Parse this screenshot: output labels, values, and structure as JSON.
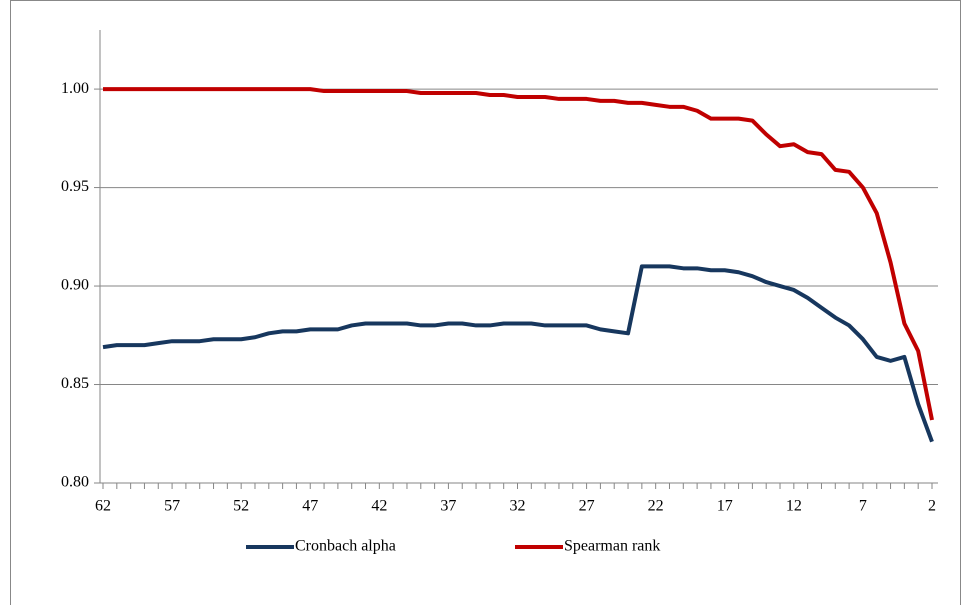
{
  "chart_data": {
    "type": "line",
    "x": [
      62,
      61,
      60,
      59,
      58,
      57,
      56,
      55,
      54,
      53,
      52,
      51,
      50,
      49,
      48,
      47,
      46,
      45,
      44,
      43,
      42,
      41,
      40,
      39,
      38,
      37,
      36,
      35,
      34,
      33,
      32,
      31,
      30,
      29,
      28,
      27,
      26,
      25,
      24,
      23,
      22,
      21,
      20,
      19,
      18,
      17,
      16,
      15,
      14,
      13,
      12,
      11,
      10,
      9,
      8,
      7,
      6,
      5,
      4,
      3,
      2
    ],
    "xlim": [
      62,
      2
    ],
    "xticks": [
      62,
      57,
      52,
      47,
      42,
      37,
      32,
      27,
      22,
      17,
      12,
      7,
      2
    ],
    "ylim": [
      0.8,
      1.03
    ],
    "yticks": [
      {
        "value": 0.8,
        "label": "0.80"
      },
      {
        "value": 0.85,
        "label": "0.85"
      },
      {
        "value": 0.9,
        "label": "0.90"
      },
      {
        "value": 0.95,
        "label": "0.95"
      },
      {
        "value": 1.0,
        "label": "1.00"
      }
    ],
    "grid": true,
    "legend": "bottom",
    "series": [
      {
        "name": "Cronbach alpha",
        "color": "#17375e",
        "values": [
          0.869,
          0.87,
          0.87,
          0.87,
          0.871,
          0.872,
          0.872,
          0.872,
          0.873,
          0.873,
          0.873,
          0.874,
          0.876,
          0.877,
          0.877,
          0.878,
          0.878,
          0.878,
          0.88,
          0.881,
          0.881,
          0.881,
          0.881,
          0.88,
          0.88,
          0.881,
          0.881,
          0.88,
          0.88,
          0.881,
          0.881,
          0.881,
          0.88,
          0.88,
          0.88,
          0.88,
          0.878,
          0.877,
          0.876,
          0.91,
          0.91,
          0.91,
          0.909,
          0.909,
          0.908,
          0.908,
          0.907,
          0.905,
          0.902,
          0.9,
          0.898,
          0.894,
          0.889,
          0.884,
          0.88,
          0.873,
          0.864,
          0.862,
          0.864,
          0.84,
          0.821
        ]
      },
      {
        "name": "Spearman rank",
        "color": "#c00000",
        "values": [
          1.0,
          1.0,
          1.0,
          1.0,
          1.0,
          1.0,
          1.0,
          1.0,
          1.0,
          1.0,
          1.0,
          1.0,
          1.0,
          1.0,
          1.0,
          1.0,
          0.999,
          0.999,
          0.999,
          0.999,
          0.999,
          0.999,
          0.999,
          0.998,
          0.998,
          0.998,
          0.998,
          0.998,
          0.997,
          0.997,
          0.996,
          0.996,
          0.996,
          0.995,
          0.995,
          0.995,
          0.994,
          0.994,
          0.993,
          0.993,
          0.992,
          0.991,
          0.991,
          0.989,
          0.985,
          0.985,
          0.985,
          0.984,
          0.977,
          0.971,
          0.972,
          0.968,
          0.967,
          0.959,
          0.958,
          0.95,
          0.937,
          0.912,
          0.881,
          0.867,
          0.832
        ]
      }
    ]
  }
}
